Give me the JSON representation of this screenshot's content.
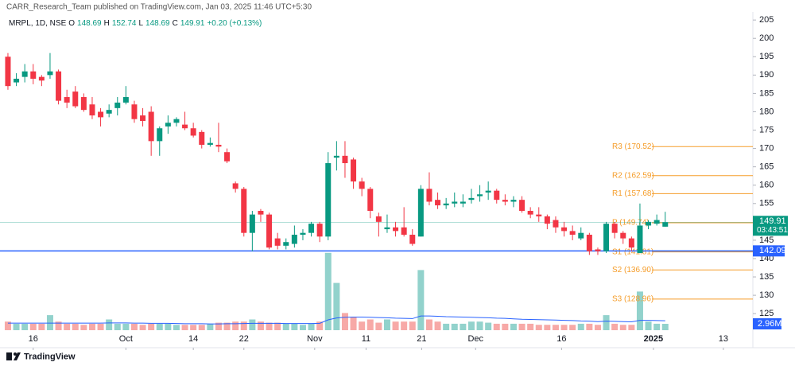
{
  "header": {
    "text": "CARR_Research_Team published on TradingView.com, Jan 03, 2025 11:46 UTC+5:30"
  },
  "chart_data": {
    "type": "candlestick",
    "symbol": "MRPL, 1D, NSE",
    "legend": {
      "open_label": "O",
      "open": 148.69,
      "high_label": "H",
      "high": 152.74,
      "low_label": "L",
      "low": 148.69,
      "close_label": "C",
      "close": 149.91,
      "change": "+0.20 (+0.13%)"
    },
    "up_color": "#089981",
    "down_color": "#f23645",
    "volume_up_color": "#92d2cc",
    "volume_down_color": "#f7a9a7",
    "open": [
      195,
      188,
      189.5,
      191,
      189.5,
      190,
      191,
      184,
      185.5,
      184,
      182,
      180,
      179.5,
      181,
      182.5,
      182,
      179,
      180,
      172,
      176,
      177,
      176.5,
      175.5,
      174.5,
      171,
      171,
      169,
      160.5,
      159,
      147,
      153,
      152,
      145.5,
      143.5,
      144,
      146.5,
      147,
      149.5,
      146,
      167.5,
      168,
      167,
      161,
      159,
      151.5,
      148,
      148.5,
      148.5,
      146.5,
      146,
      159,
      156,
      154.5,
      155,
      155,
      156,
      157,
      158,
      158.5,
      156,
      155.5,
      156,
      153,
      152,
      151.5,
      150.5,
      148.5,
      147.5,
      145.5,
      146.5,
      142.5,
      142,
      149.5,
      147,
      145.5,
      141.5,
      149,
      149.5,
      148.69
    ],
    "high": [
      196,
      190.5,
      193,
      193,
      190,
      196,
      191.5,
      186,
      187,
      185,
      184,
      181,
      182,
      184,
      187,
      183,
      181,
      181.5,
      176,
      179,
      178.5,
      180,
      177,
      175,
      173,
      177,
      170,
      161,
      159.5,
      153,
      153.5,
      152.5,
      147,
      145.5,
      149,
      148,
      150,
      150,
      169,
      172,
      172,
      167.5,
      162,
      159.5,
      152.5,
      152,
      150,
      154,
      148,
      160,
      163.5,
      158,
      156.5,
      158,
      157.5,
      159,
      160,
      161,
      159,
      157.5,
      157,
      157,
      154,
      154,
      152,
      151.5,
      150,
      149,
      148.5,
      147,
      143,
      150,
      150,
      147.5,
      146,
      155,
      150.5,
      152,
      152.74
    ],
    "low": [
      186,
      187,
      188,
      187.5,
      187,
      189,
      182,
      181,
      181,
      180,
      178,
      176,
      178.5,
      179,
      182,
      177,
      176,
      168,
      168,
      174,
      176,
      175,
      173,
      170,
      170.5,
      169,
      166,
      158,
      146,
      142,
      150,
      142.5,
      142.5,
      142.5,
      143,
      145,
      146,
      144.5,
      145,
      164,
      162,
      159,
      157,
      151,
      146,
      147,
      146,
      146,
      143.5,
      146,
      154.5,
      153.5,
      153.5,
      154,
      154,
      155,
      155.5,
      156,
      155,
      154.5,
      154,
      152.5,
      151,
      150,
      148,
      147,
      146,
      145,
      145,
      141,
      141,
      141.5,
      145.5,
      144,
      142,
      141.5,
      148,
      149,
      148.69
    ],
    "close": [
      187,
      189,
      191,
      189,
      188.5,
      191,
      183,
      182.5,
      181.5,
      180.5,
      179,
      178.5,
      180.5,
      182.5,
      184,
      178,
      177.5,
      172,
      175.5,
      177,
      178,
      175.5,
      173.5,
      171,
      171.5,
      170.5,
      166.5,
      159,
      147,
      152,
      152,
      143,
      143.5,
      144.5,
      146.5,
      147,
      149.5,
      146,
      166,
      168,
      166,
      161,
      159,
      153,
      150,
      148.5,
      147.5,
      146.5,
      144,
      159,
      155.5,
      154.5,
      155,
      155.5,
      155.5,
      156.5,
      157.5,
      158.5,
      156,
      155.5,
      156,
      153,
      152,
      151.5,
      149.5,
      148.5,
      147.5,
      146.5,
      147,
      142,
      142,
      149.5,
      147,
      145.5,
      143,
      149,
      150,
      150.5,
      149.91
    ],
    "volume": [
      4,
      3,
      3,
      3,
      3,
      7,
      4,
      3,
      3,
      2.5,
      3,
      3,
      5,
      3,
      3,
      3,
      2.5,
      3,
      3,
      3,
      2.5,
      2.5,
      2.5,
      2.5,
      3,
      3.5,
      3.5,
      4,
      4,
      5,
      4,
      3.5,
      3.5,
      3,
      3,
      2.5,
      3,
      4,
      36,
      22,
      8,
      6,
      4,
      5,
      3.5,
      5,
      4,
      4,
      4,
      28,
      5,
      4,
      3,
      3,
      3,
      4,
      4,
      3.5,
      3,
      3,
      3,
      3,
      3,
      2.5,
      2.5,
      2.5,
      2.5,
      2.5,
      3,
      3,
      2.5,
      7,
      3,
      2.5,
      2.5,
      18,
      4,
      3,
      2.96
    ],
    "volume_ma": [
      3.3,
      3.3,
      3.3,
      3.3,
      3.3,
      3.3,
      3.3,
      3.3,
      3.3,
      3.3,
      3.3,
      3.3,
      3.4,
      3.4,
      3.4,
      3.3,
      3.3,
      3.2,
      3.2,
      3.2,
      3.1,
      3.0,
      3.0,
      3.0,
      2.9,
      2.9,
      3.0,
      3.0,
      3.1,
      3.2,
      3.2,
      3.2,
      3.2,
      3.1,
      3.1,
      3.1,
      3.1,
      3.2,
      4.8,
      5.7,
      6.0,
      6.1,
      6.1,
      6.0,
      5.9,
      5.8,
      5.6,
      5.5,
      5.4,
      6.6,
      6.6,
      6.5,
      6.3,
      6.2,
      6.1,
      6.0,
      5.9,
      5.8,
      5.6,
      5.5,
      5.3,
      5.1,
      5.0,
      4.9,
      4.8,
      4.7,
      4.6,
      4.5,
      4.3,
      4.2,
      4.0,
      4.2,
      4.1,
      4.0,
      3.9,
      4.6,
      4.6,
      4.5,
      4.4
    ],
    "volume_ma_color": "#2962ff",
    "volume_lim": [
      0,
      40
    ],
    "last_volume_label": "2.96M",
    "ylim": [
      119.4,
      207.2
    ],
    "yticks": [
      205,
      200,
      195,
      190,
      185,
      180,
      175,
      170,
      165,
      160,
      155,
      150,
      145,
      140,
      135,
      130,
      125
    ],
    "xlim": [
      -0.94,
      88.4
    ],
    "xticks": [
      {
        "value": 3,
        "label": "16"
      },
      {
        "value": 14,
        "label": "Oct"
      },
      {
        "value": 22,
        "label": "14"
      },
      {
        "value": 28,
        "label": "22"
      },
      {
        "value": 36.4,
        "label": "Nov"
      },
      {
        "value": 42.5,
        "label": "11"
      },
      {
        "value": 49.1,
        "label": "21"
      },
      {
        "value": 55.5,
        "label": "Dec"
      },
      {
        "value": 65.7,
        "label": "16"
      },
      {
        "value": 76.6,
        "label": "2025"
      },
      {
        "value": 84.9,
        "label": "13"
      }
    ],
    "pivot_color": "#f59d2a",
    "pivots": [
      {
        "value": 170.52,
        "label": "R3 (170.52)"
      },
      {
        "value": 162.59,
        "label": "R2 (162.59)"
      },
      {
        "value": 157.68,
        "label": "R1 (157.68)"
      },
      {
        "value": 149.74,
        "label": "P (149.74)"
      },
      {
        "value": 141.81,
        "label": "S1 (141.81)"
      },
      {
        "value": 136.9,
        "label": "S2 (136.90)"
      },
      {
        "value": 128.96,
        "label": "S3 (128.96)"
      }
    ],
    "hline": {
      "value": 142.09,
      "color": "#2962ff"
    },
    "last_price": {
      "value": 149.91,
      "countdown": "03:43:51"
    }
  },
  "footer": {
    "brand": "TradingView"
  }
}
